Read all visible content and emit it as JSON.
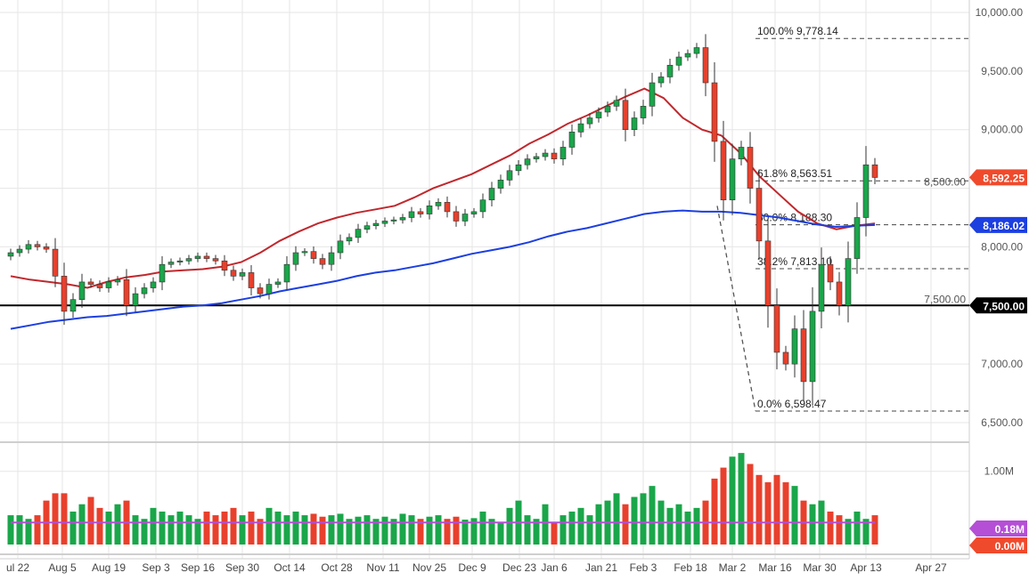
{
  "chart_data": {
    "type": "candlestick",
    "title": "",
    "price_axis": {
      "ticks": [
        "10,000.00",
        "9,500.00",
        "9,000.00",
        "8,500.00",
        "8,000.00",
        "7,500.00",
        "7,000.00",
        "6,500.00"
      ],
      "tick_values": [
        10000,
        9500,
        9000,
        8500,
        8000,
        7500,
        7000,
        6500
      ],
      "ylim": [
        6500,
        10000
      ]
    },
    "volume_axis": {
      "ticks": [
        "1.00M"
      ],
      "tick_values": [
        1.0
      ],
      "ylim": [
        0,
        1.3
      ]
    },
    "date_ticks": [
      "ul 22",
      "Aug 5",
      "Aug 19",
      "Sep 3",
      "Sep 16",
      "Sep 30",
      "Oct 14",
      "Oct 28",
      "Nov 11",
      "Nov 25",
      "Dec 9",
      "Dec 23",
      "Jan 6",
      "Jan 21",
      "Feb 3",
      "Feb 18",
      "Mar 2",
      "Mar 16",
      "Mar 30",
      "Apr 13",
      "Apr 27"
    ],
    "close": [
      7950,
      7980,
      8020,
      8000,
      7980,
      7750,
      7450,
      7550,
      7700,
      7680,
      7650,
      7700,
      7720,
      7500,
      7600,
      7650,
      7700,
      7850,
      7870,
      7880,
      7900,
      7920,
      7900,
      7880,
      7800,
      7750,
      7780,
      7650,
      7600,
      7680,
      7700,
      7850,
      7950,
      7960,
      7900,
      7850,
      7950,
      8050,
      8080,
      8150,
      8180,
      8200,
      8220,
      8230,
      8250,
      8300,
      8280,
      8350,
      8380,
      8300,
      8220,
      8280,
      8300,
      8400,
      8500,
      8570,
      8650,
      8700,
      8750,
      8770,
      8800,
      8750,
      8850,
      8980,
      9050,
      9100,
      9150,
      9200,
      9250,
      9000,
      9100,
      9200,
      9400,
      9450,
      9550,
      9620,
      9650,
      9700,
      9400,
      8900,
      8400,
      8750,
      8850,
      8500,
      8050,
      7500,
      7100,
      7000,
      7300,
      6850,
      7450,
      7850,
      7700,
      7500,
      7900,
      8250,
      8700,
      8592
    ],
    "volume": [
      0.4,
      0.4,
      0.35,
      0.4,
      0.6,
      0.7,
      0.7,
      0.45,
      0.55,
      0.65,
      0.5,
      0.45,
      0.55,
      0.6,
      0.4,
      0.35,
      0.5,
      0.45,
      0.4,
      0.45,
      0.4,
      0.35,
      0.45,
      0.4,
      0.45,
      0.5,
      0.4,
      0.45,
      0.35,
      0.5,
      0.45,
      0.4,
      0.45,
      0.4,
      0.42,
      0.38,
      0.4,
      0.42,
      0.35,
      0.38,
      0.4,
      0.35,
      0.38,
      0.35,
      0.42,
      0.4,
      0.35,
      0.38,
      0.4,
      0.35,
      0.38,
      0.34,
      0.36,
      0.45,
      0.35,
      0.3,
      0.5,
      0.6,
      0.4,
      0.35,
      0.55,
      0.3,
      0.4,
      0.45,
      0.5,
      0.4,
      0.55,
      0.6,
      0.7,
      0.55,
      0.65,
      0.7,
      0.8,
      0.6,
      0.5,
      0.55,
      0.45,
      0.5,
      0.6,
      0.9,
      1.05,
      1.2,
      1.25,
      1.1,
      0.95,
      0.85,
      0.95,
      0.85,
      0.8,
      0.6,
      0.55,
      0.6,
      0.45,
      0.4,
      0.35,
      0.45,
      0.35,
      0.4
    ],
    "series": [
      {
        "name": "",
        "color": "#c0282d",
        "values": [
          7750,
          7720,
          7700,
          7680,
          7650,
          7700,
          7740,
          7760,
          7790,
          7800,
          7810,
          7830,
          7870,
          7950,
          8050,
          8130,
          8200,
          8250,
          8290,
          8320,
          8350,
          8420,
          8500,
          8560,
          8620,
          8700,
          8780,
          8880,
          8960,
          9050,
          9120,
          9200,
          9280,
          9350,
          9270,
          9100,
          9000,
          8950,
          8800,
          8600,
          8450,
          8300,
          8200,
          8150,
          8180,
          8200
        ]
      },
      {
        "name": "",
        "color": "#1c3fe0",
        "values": [
          7300,
          7330,
          7360,
          7380,
          7400,
          7410,
          7430,
          7450,
          7470,
          7490,
          7500,
          7520,
          7550,
          7580,
          7620,
          7650,
          7680,
          7710,
          7750,
          7780,
          7800,
          7830,
          7860,
          7900,
          7940,
          7970,
          8000,
          8040,
          8090,
          8130,
          8160,
          8200,
          8240,
          8280,
          8300,
          8310,
          8300,
          8300,
          8290,
          8270,
          8250,
          8220,
          8190,
          8170,
          8180,
          8186
        ]
      }
    ],
    "volume_ma": 0.18,
    "fibonacci": [
      {
        "label": "100.0% 9,778.14",
        "value": 9778.14
      },
      {
        "label": "61.8% 8,563.51",
        "value": 8563.51
      },
      {
        "label": "50.0% 8,188.30",
        "value": 8188.3
      },
      {
        "label": "38.2% 7,813.10",
        "value": 7813.1
      },
      {
        "label": "0.0% 6,598.47",
        "value": 6598.47
      }
    ],
    "horizontal_line": {
      "value": 7500,
      "label": "7,500.00",
      "color": "#000000"
    },
    "badges": [
      {
        "label": "8,592.25",
        "value": 8592.25,
        "color": "#f04a2c"
      },
      {
        "label": "8,186.02",
        "value": 8186.02,
        "color": "#1c3fe0"
      }
    ],
    "volume_badges": [
      {
        "label": "0.18M",
        "color": "#b44fd6"
      },
      {
        "label": "0.00M",
        "color": "#f04a2c"
      }
    ],
    "colors": {
      "up": "#1aa64a",
      "down": "#e8402c",
      "volume_ma": "#b44fd6"
    }
  }
}
